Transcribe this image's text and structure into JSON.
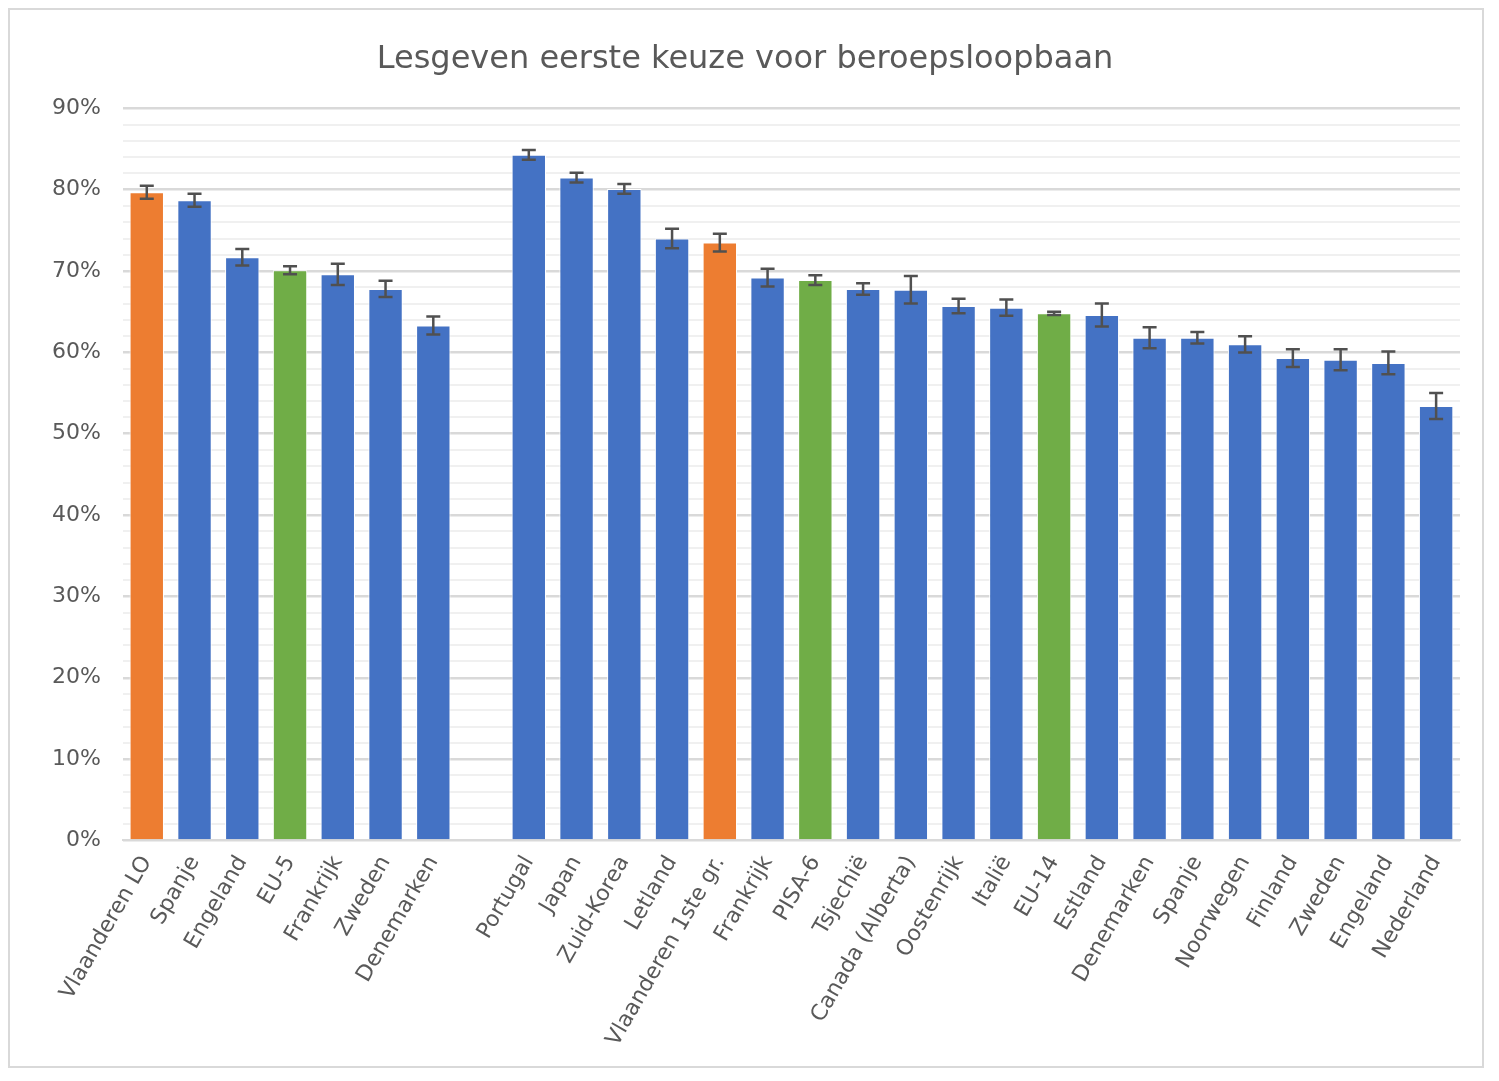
{
  "chart_data": {
    "type": "bar",
    "title": "Lesgeven eerste keuze voor beroepsloopbaan",
    "categories": [
      "Vlaanderen LO",
      "Spanje",
      "Engeland",
      "EU-5",
      "Frankrijk",
      "Zweden",
      "Denemarken",
      null,
      "Portugal",
      "Japan",
      "Zuid-Korea",
      "Letland",
      "Vlaanderen 1ste gr.",
      "Frankrijk",
      "PISA-6",
      "Tsjechië",
      "Canada (Alberta)",
      "Oostenrijk",
      "Italië",
      "EU-14",
      "Estland",
      "Denemarken",
      "Spanje",
      "Noorwegen",
      "Finland",
      "Zweden",
      "Engeland",
      "Nederland"
    ],
    "values": [
      79.7,
      78.7,
      71.7,
      70.1,
      69.6,
      67.8,
      63.3,
      null,
      84.3,
      81.5,
      80.1,
      74.0,
      73.5,
      69.2,
      68.9,
      67.8,
      67.7,
      65.7,
      65.5,
      64.8,
      64.6,
      61.8,
      61.8,
      61.0,
      59.3,
      59.1,
      58.7,
      53.4
    ],
    "errors": [
      0.8,
      0.8,
      1.0,
      0.5,
      1.3,
      1.0,
      1.1,
      null,
      0.6,
      0.6,
      0.6,
      1.2,
      1.1,
      1.1,
      0.6,
      0.7,
      1.7,
      0.9,
      1.0,
      0.2,
      1.4,
      1.3,
      0.7,
      1.0,
      1.1,
      1.3,
      1.4,
      1.6
    ],
    "colors": [
      "#ed7d31",
      "#4472c4",
      "#4472c4",
      "#70ad47",
      "#4472c4",
      "#4472c4",
      "#4472c4",
      "#4472c4",
      "#4472c4",
      "#4472c4",
      "#4472c4",
      "#4472c4",
      "#ed7d31",
      "#4472c4",
      "#70ad47",
      "#4472c4",
      "#4472c4",
      "#4472c4",
      "#4472c4",
      "#70ad47",
      "#4472c4",
      "#4472c4",
      "#4472c4",
      "#4472c4",
      "#4472c4",
      "#4472c4",
      "#4472c4",
      "#4472c4"
    ],
    "ylim": [
      0,
      90
    ],
    "yticks": [
      {
        "value": 0,
        "label": "0%"
      },
      {
        "value": 2,
        "label": null
      },
      {
        "value": 4,
        "label": null
      },
      {
        "value": 6,
        "label": null
      },
      {
        "value": 8,
        "label": null
      },
      {
        "value": 10,
        "label": "10%"
      },
      {
        "value": 12,
        "label": null
      },
      {
        "value": 14,
        "label": null
      },
      {
        "value": 16,
        "label": null
      },
      {
        "value": 18,
        "label": null
      },
      {
        "value": 20,
        "label": "20%"
      },
      {
        "value": 22,
        "label": null
      },
      {
        "value": 24,
        "label": null
      },
      {
        "value": 26,
        "label": null
      },
      {
        "value": 28,
        "label": null
      },
      {
        "value": 30,
        "label": "30%"
      },
      {
        "value": 32,
        "label": null
      },
      {
        "value": 34,
        "label": null
      },
      {
        "value": 36,
        "label": null
      },
      {
        "value": 38,
        "label": null
      },
      {
        "value": 40,
        "label": "40%"
      },
      {
        "value": 42,
        "label": null
      },
      {
        "value": 44,
        "label": null
      },
      {
        "value": 46,
        "label": null
      },
      {
        "value": 48,
        "label": null
      },
      {
        "value": 50,
        "label": "50%"
      },
      {
        "value": 52,
        "label": null
      },
      {
        "value": 54,
        "label": null
      },
      {
        "value": 56,
        "label": null
      },
      {
        "value": 58,
        "label": null
      },
      {
        "value": 60,
        "label": "60%"
      },
      {
        "value": 62,
        "label": null
      },
      {
        "value": 64,
        "label": null
      },
      {
        "value": 66,
        "label": null
      },
      {
        "value": 68,
        "label": null
      },
      {
        "value": 70,
        "label": "70%"
      },
      {
        "value": 72,
        "label": null
      },
      {
        "value": 74,
        "label": null
      },
      {
        "value": 76,
        "label": null
      },
      {
        "value": 78,
        "label": null
      },
      {
        "value": 80,
        "label": "80%"
      },
      {
        "value": 82,
        "label": null
      },
      {
        "value": 84,
        "label": null
      },
      {
        "value": 86,
        "label": null
      },
      {
        "value": 88,
        "label": null
      },
      {
        "value": 90,
        "label": "90%"
      }
    ],
    "grid": "y",
    "legend": false
  }
}
